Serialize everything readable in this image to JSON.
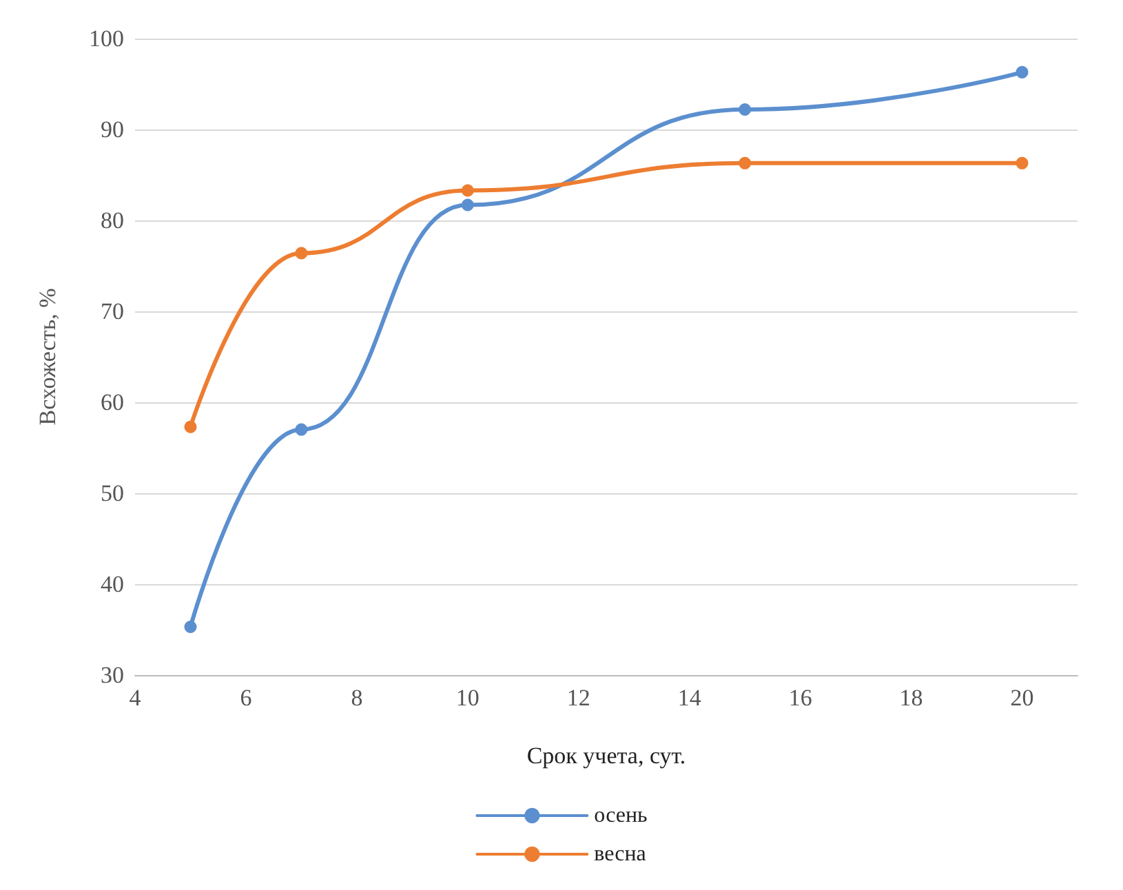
{
  "chart_data": {
    "type": "line",
    "xlabel": "Срок учета, сут.",
    "ylabel": "Всхожесть, %",
    "series": [
      {
        "name": "осень",
        "color": "#5b8fcf",
        "x": [
          5,
          7,
          10,
          15,
          20
        ],
        "values": [
          35.3,
          57,
          81.7,
          92.2,
          96.3
        ]
      },
      {
        "name": "весна",
        "color": "#ed7d31",
        "x": [
          5,
          7,
          10,
          15,
          20
        ],
        "values": [
          57.3,
          76.4,
          83.3,
          86.3,
          86.3
        ]
      }
    ],
    "xlim": [
      4,
      21
    ],
    "xticks": [
      4,
      6,
      8,
      10,
      12,
      14,
      16,
      18,
      20
    ],
    "ylim": [
      30,
      100
    ],
    "yticks": [
      30,
      40,
      50,
      60,
      70,
      80,
      90,
      100
    ],
    "grid": "y",
    "legend": "bottom",
    "marker": "circle",
    "line_style": "solid"
  }
}
